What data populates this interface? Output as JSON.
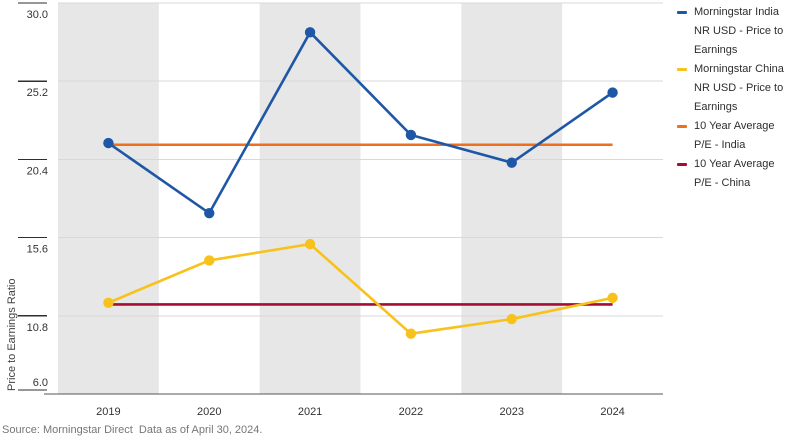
{
  "source_note": "Source: Morningstar Direct  Data as of April 30, 2024.",
  "chart_data": {
    "type": "line",
    "title": "",
    "xlabel": "",
    "ylabel": "Price to Earnings Ratio",
    "categories": [
      "2019",
      "2020",
      "2021",
      "2022",
      "2023",
      "2024"
    ],
    "series": [
      {
        "name": "Morningstar India NR USD - Price to Earnings",
        "color": "#1f57a7",
        "values": [
          21.4,
          17.1,
          28.2,
          21.9,
          20.2,
          24.5
        ]
      },
      {
        "name": "Morningstar China NR USD - Price to Earnings",
        "color": "#f8c21c",
        "values": [
          11.6,
          14.2,
          15.2,
          9.7,
          10.6,
          11.9
        ]
      }
    ],
    "avg_lines": [
      {
        "name": "10 Year Average P/E - India",
        "color": "#ee6f1d",
        "value": 21.3
      },
      {
        "name": "10 Year Average P/E - China",
        "color": "#a60d35",
        "value": 11.5
      }
    ],
    "ylim": [
      6.0,
      30.0
    ],
    "yticks": [
      "30.0",
      "25.2",
      "20.4",
      "15.6",
      "10.8",
      "6.0"
    ],
    "grid": "horizontal",
    "legend_position": "right",
    "shaded_columns": [
      0,
      2,
      4
    ],
    "band_color": "#e7e7e7"
  }
}
